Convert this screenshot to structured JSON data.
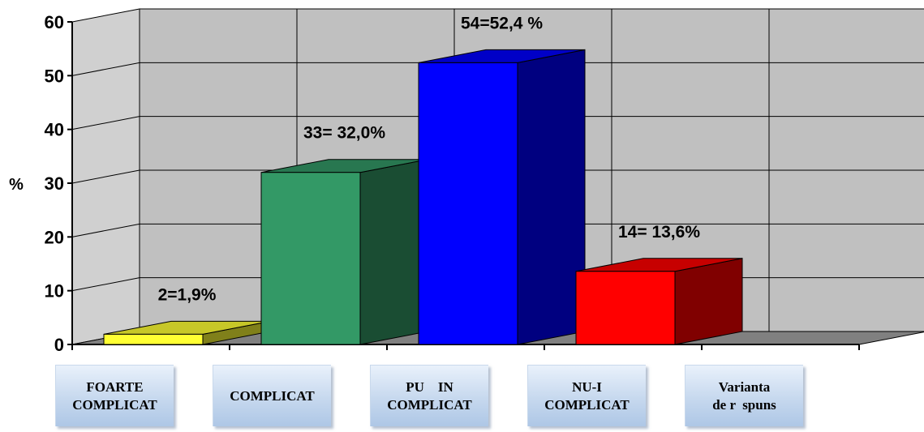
{
  "chart_data": {
    "type": "bar",
    "style": "3d",
    "categories": [
      [
        "FOARTE",
        "COMPLICAT"
      ],
      [
        "COMPLICAT"
      ],
      [
        "PU    IN",
        "COMPLICAT"
      ],
      [
        "NU-I",
        "COMPLICAT"
      ],
      [
        "Varianta",
        "de r  spuns"
      ]
    ],
    "values": [
      1.9,
      32.0,
      52.4,
      13.6,
      null
    ],
    "data_labels": [
      "2=1,9%",
      "33= 32,0%",
      "54=52,4 %",
      "14= 13,6%",
      ""
    ],
    "colors": [
      "#ffff33",
      "#339966",
      "#0000ff",
      "#ff0000",
      ""
    ],
    "ylabel": "%",
    "ylim": [
      0,
      60
    ],
    "yticks": [
      "0",
      "10",
      "20",
      "30",
      "40",
      "50",
      "60"
    ],
    "grid": true
  }
}
